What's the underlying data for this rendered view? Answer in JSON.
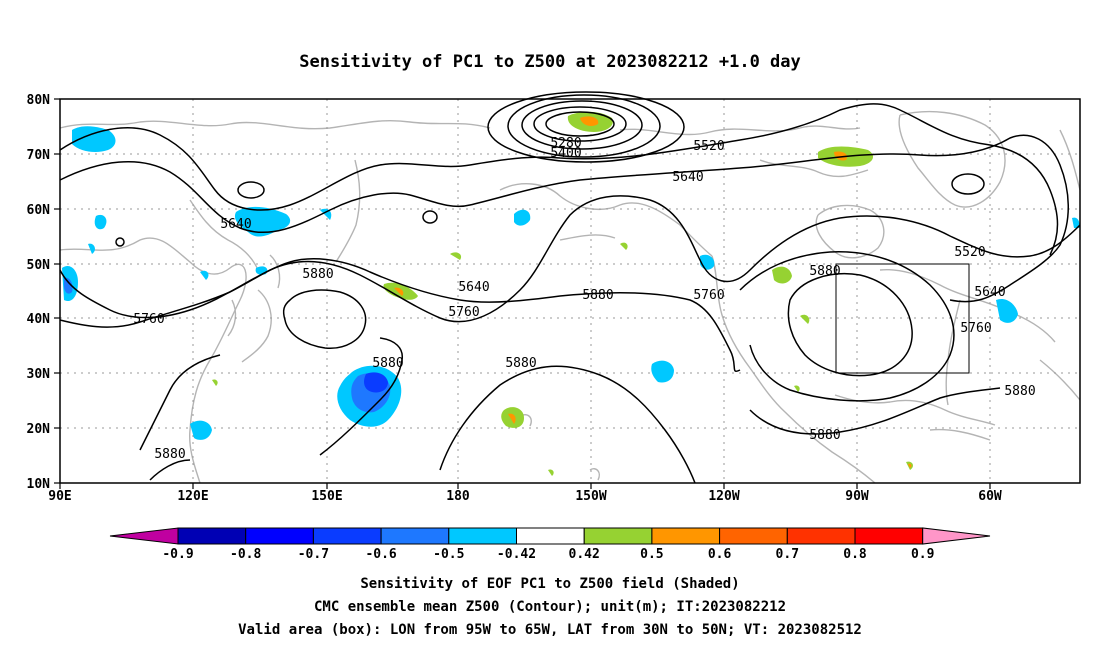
{
  "title": "Sensitivity of PC1 to Z500 at 2023082212 +1.0 day",
  "axes": {
    "lon_labels": [
      "90E",
      "120E",
      "150E",
      "180",
      "150W",
      "120W",
      "90W",
      "60W"
    ],
    "lat_labels": [
      "80N",
      "70N",
      "60N",
      "50N",
      "40N",
      "30N",
      "20N",
      "10N"
    ]
  },
  "contour_labels": {
    "c5280": "5280",
    "c5400": "5400",
    "c5520a": "5520",
    "c5520b": "5520",
    "c5640a": "5640",
    "c5640b": "5640",
    "c5640c": "5640",
    "c5640d": "5640",
    "c5760a": "5760",
    "c5760b": "5760",
    "c5760c": "5760",
    "c5760d": "5760",
    "c5880a": "5880",
    "c5880b": "5880",
    "c5880c": "5880",
    "c5880d": "5880",
    "c5880e": "5880",
    "c5880f": "5880",
    "c5880g": "5880",
    "c5880h": "5880"
  },
  "colorbar": {
    "labels": [
      "-0.9",
      "-0.8",
      "-0.7",
      "-0.6",
      "-0.5",
      "-0.42",
      "0.42",
      "0.5",
      "0.6",
      "0.7",
      "0.8",
      "0.9"
    ],
    "colors": [
      "#c000a0",
      "#0000b4",
      "#0000ff",
      "#0a3cff",
      "#1e78ff",
      "#00c8ff",
      "#ffffff",
      "#96d232",
      "#ff9600",
      "#ff6400",
      "#ff3200",
      "#ff0000",
      "#ff96c8"
    ]
  },
  "footer": {
    "line1": "Sensitivity of EOF PC1 to Z500 field (Shaded)",
    "line2": "CMC ensemble mean Z500 (Contour); unit(m); IT:2023082212",
    "line3": "Valid area (box): LON from 95W to 65W, LAT from 30N to 50N; VT: 2023082512"
  }
}
